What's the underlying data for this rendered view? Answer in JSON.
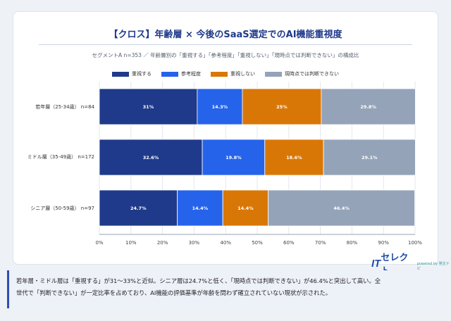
{
  "title": "【クロス】年齢層 × 今後のSaaS選定でのAI機能重視度",
  "subtitle": "セグメントA n=353 ／ 年齢層別の「重視する」「参考程度」「重視しない」「現時点では判断できない」の構成比",
  "logo": {
    "main_it": "IT",
    "main_rest": "セレクト",
    "sub": "powered by 発注ナビ"
  },
  "footer": {
    "line1": "若年層・ミドル層は「重視する」が31～33%と近似。シニア層は24.7%と低く、「現時点では判断できない」が46.4%と突出して高い。全",
    "line2": "世代で「判断できない」が一定比率を占めており、AI機能の評価基準が年齢を問わず確立されていない現状が示された。"
  },
  "chart_data": {
    "type": "bar",
    "orientation": "horizontal",
    "stacked": true,
    "categories": [
      "若年層（25-34歳） n=84",
      "ミドル層（35-49歳） n=172",
      "シニア層（50-59歳） n=97"
    ],
    "series": [
      {
        "name": "重視する",
        "color": "#1f3a8a",
        "values": [
          31,
          32.6,
          24.7
        ],
        "labels": [
          "31%",
          "32.6%",
          "24.7%"
        ]
      },
      {
        "name": "参考程度",
        "color": "#2563eb",
        "values": [
          14.3,
          19.8,
          14.4
        ],
        "labels": [
          "14.3%",
          "19.8%",
          "14.4%"
        ]
      },
      {
        "name": "重視しない",
        "color": "#d97706",
        "values": [
          25,
          18.6,
          14.4
        ],
        "labels": [
          "25%",
          "18.6%",
          "14.4%"
        ]
      },
      {
        "name": "現時点では判断できない",
        "color": "#94a3b8",
        "values": [
          29.8,
          29.1,
          46.4
        ],
        "labels": [
          "29.8%",
          "29.1%",
          "46.4%"
        ]
      }
    ],
    "xlim": [
      0,
      100
    ],
    "xticks": [
      "0%",
      "10%",
      "20%",
      "30%",
      "40%",
      "50%",
      "60%",
      "70%",
      "80%",
      "90%",
      "100%"
    ],
    "grid": true,
    "legend": "top-center"
  }
}
